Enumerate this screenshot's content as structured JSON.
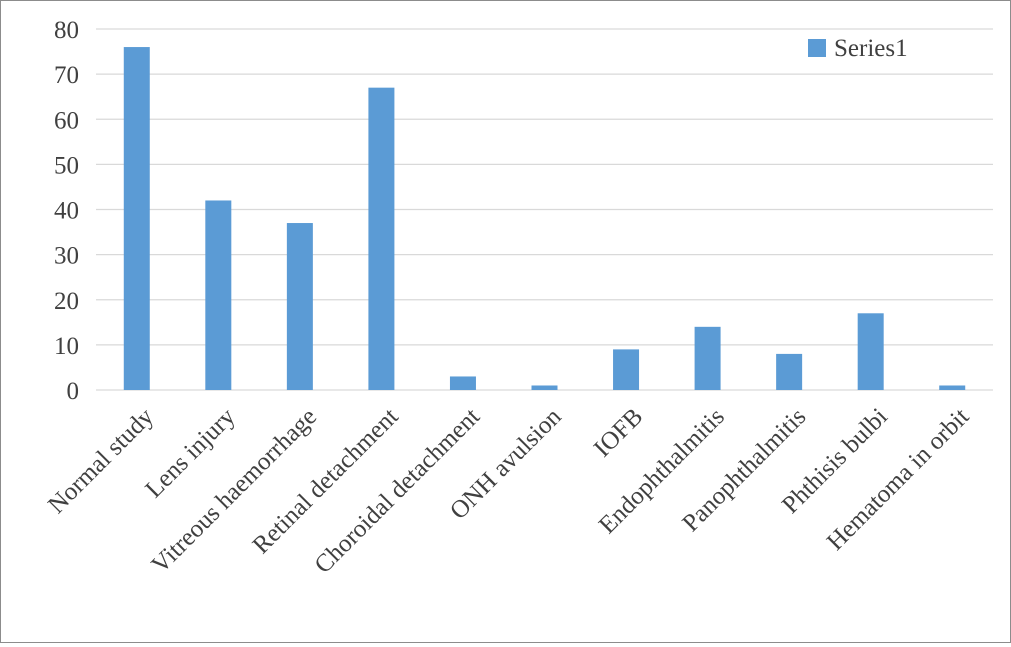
{
  "chart_data": {
    "type": "bar",
    "title": "",
    "xlabel": "",
    "ylabel": "",
    "ylim": [
      0,
      80
    ],
    "yticks": [
      0,
      10,
      20,
      30,
      40,
      50,
      60,
      70,
      80
    ],
    "grid": true,
    "legend_position": "top-right",
    "bar_color": "#5b9bd5",
    "grid_color": "#d9d9d9",
    "categories": [
      "Normal study",
      "Lens injury",
      "Vitreous haemorrhage",
      "Retinal detachment",
      "Choroidal detachment",
      "ONH avulsion",
      "IOFB",
      "Endophthalmitis",
      "Panophthalmitis",
      "Phthisis bulbi",
      "Hematoma in orbit"
    ],
    "series": [
      {
        "name": "Series1",
        "values": [
          76,
          42,
          37,
          67,
          3,
          1,
          9,
          14,
          8,
          17,
          1
        ]
      }
    ]
  }
}
